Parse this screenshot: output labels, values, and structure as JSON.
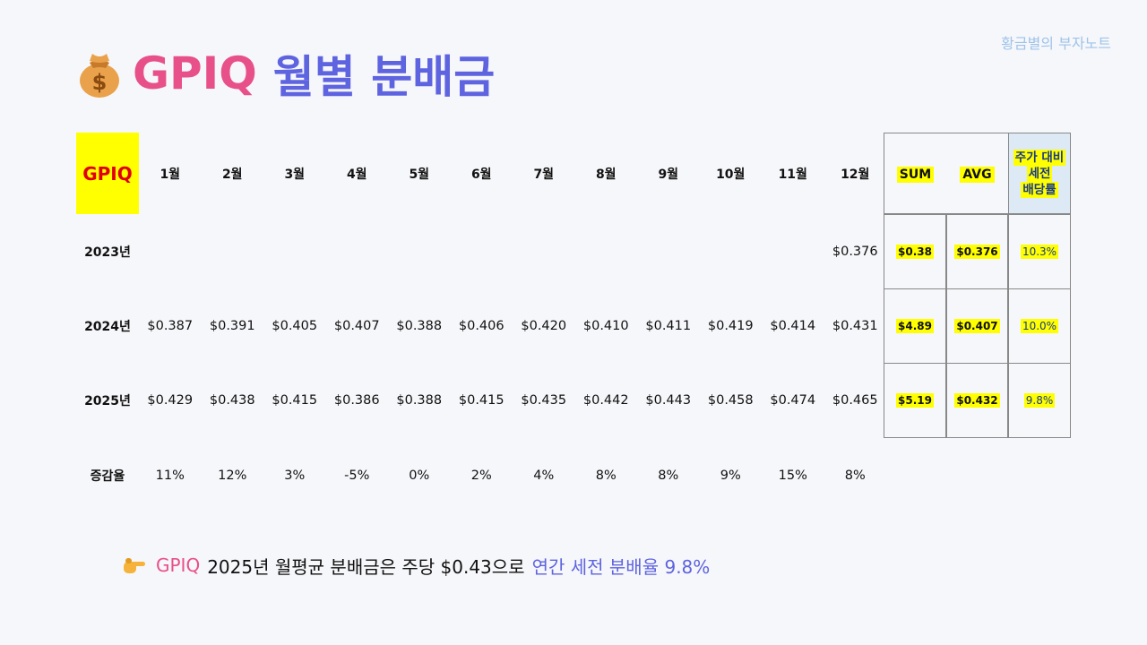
{
  "brand": "황금별의 부자노트",
  "title": {
    "code": "GPIQ",
    "rest": "월별 분배금",
    "icon": "money-bag-icon"
  },
  "table": {
    "corner_label": "GPIQ",
    "months": [
      "1월",
      "2월",
      "3월",
      "4월",
      "5월",
      "6월",
      "7월",
      "8월",
      "9월",
      "10월",
      "11월",
      "12월"
    ],
    "summary_headers": {
      "sum": "SUM",
      "avg": "AVG",
      "yield_lines": [
        "주가 대비",
        "세전",
        "배당률"
      ]
    },
    "rows": [
      {
        "label": "2023년",
        "values": [
          "",
          "",
          "",
          "",
          "",
          "",
          "",
          "",
          "",
          "",
          "",
          "$0.376"
        ],
        "sum": "$0.38",
        "avg": "$0.376",
        "yield": "10.3%"
      },
      {
        "label": "2024년",
        "values": [
          "$0.387",
          "$0.391",
          "$0.405",
          "$0.407",
          "$0.388",
          "$0.406",
          "$0.420",
          "$0.410",
          "$0.411",
          "$0.419",
          "$0.414",
          "$0.431"
        ],
        "sum": "$4.89",
        "avg": "$0.407",
        "yield": "10.0%"
      },
      {
        "label": "2025년",
        "values": [
          "$0.429",
          "$0.438",
          "$0.415",
          "$0.386",
          "$0.388",
          "$0.415",
          "$0.435",
          "$0.442",
          "$0.443",
          "$0.458",
          "$0.474",
          "$0.465"
        ],
        "sum": "$5.19",
        "avg": "$0.432",
        "yield": "9.8%"
      }
    ],
    "growth": {
      "label": "증감율",
      "values": [
        "11%",
        "12%",
        "3%",
        "-5%",
        "0%",
        "2%",
        "4%",
        "8%",
        "8%",
        "9%",
        "15%",
        "8%"
      ]
    }
  },
  "footer": {
    "icon": "pointing-hand-icon",
    "code": "GPIQ",
    "main": "2025년 월평균 분배금은 주당 $0.43으로",
    "accent": "연간 세전 분배율 9.8%"
  },
  "colors": {
    "pink": "#e8508a",
    "purple": "#5e63e0",
    "highlight": "#ffff00",
    "brand": "#9fc3ea",
    "corner_text": "#e00000"
  }
}
